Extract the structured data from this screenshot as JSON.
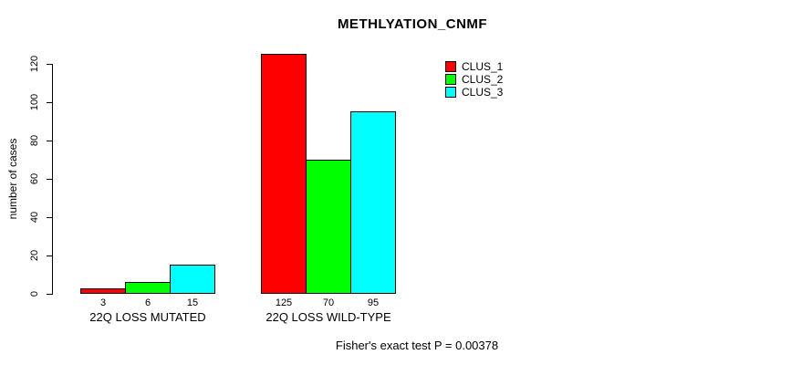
{
  "chart_data": {
    "type": "bar",
    "title": "METHLYATION_CNMF",
    "ylabel": "number of cases",
    "xlabel": "",
    "categories": [
      "22Q LOSS MUTATED",
      "22Q LOSS WILD-TYPE"
    ],
    "series": [
      {
        "name": "CLUS_1",
        "color": "#FF0000",
        "values": [
          3,
          125
        ]
      },
      {
        "name": "CLUS_2",
        "color": "#00FF00",
        "values": [
          6,
          70
        ]
      },
      {
        "name": "CLUS_3",
        "color": "#00FFFF",
        "values": [
          15,
          95
        ]
      }
    ],
    "yticks": [
      0,
      20,
      40,
      60,
      80,
      100,
      120
    ],
    "ylim": [
      0,
      130
    ],
    "grid": false,
    "legend_position": "top-right",
    "bar_value_labels_shown": true,
    "annotation": "Fisher's exact test P = 0.00378"
  }
}
